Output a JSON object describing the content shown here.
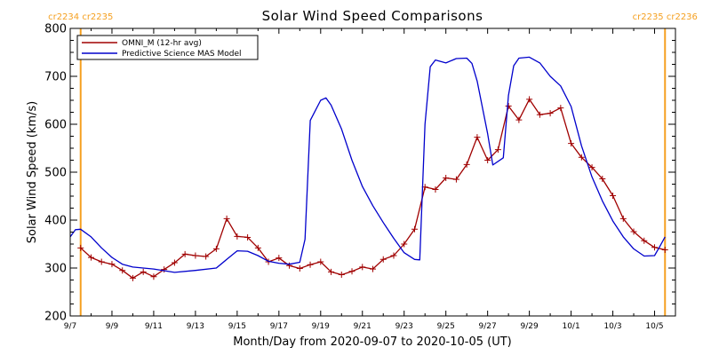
{
  "colors": {
    "omni": "#a00000",
    "model": "#0000cc",
    "carrington": "#f5a020",
    "axis": "#000000"
  },
  "chart_data": {
    "type": "line",
    "title": "Solar Wind Speed Comparisons",
    "xlabel": "Month/Day from 2020-09-07 to 2020-10-05 (UT)",
    "ylabel": "Solar Wind Speed (km/s)",
    "x_range": [
      "2020-09-07",
      "2020-10-06"
    ],
    "ylim": [
      200,
      800
    ],
    "x_ticks": [
      {
        "label": "9/7",
        "date": "2020-09-07"
      },
      {
        "label": "9/9",
        "date": "2020-09-09"
      },
      {
        "label": "9/11",
        "date": "2020-09-11"
      },
      {
        "label": "9/13",
        "date": "2020-09-13"
      },
      {
        "label": "9/15",
        "date": "2020-09-15"
      },
      {
        "label": "9/17",
        "date": "2020-09-17"
      },
      {
        "label": "9/19",
        "date": "2020-09-19"
      },
      {
        "label": "9/21",
        "date": "2020-09-21"
      },
      {
        "label": "9/23",
        "date": "2020-09-23"
      },
      {
        "label": "9/25",
        "date": "2020-09-25"
      },
      {
        "label": "9/27",
        "date": "2020-09-27"
      },
      {
        "label": "9/29",
        "date": "2020-09-29"
      },
      {
        "label": "10/1",
        "date": "2020-10-01"
      },
      {
        "label": "10/3",
        "date": "2020-10-03"
      },
      {
        "label": "10/5",
        "date": "2020-10-05"
      }
    ],
    "y_ticks": [
      200,
      300,
      400,
      500,
      600,
      700,
      800
    ],
    "legend_position": "top-left",
    "carrington_markers": [
      {
        "date": "2020-09-07 12:00",
        "left_label": "cr2234",
        "right_label": "cr2235"
      },
      {
        "date": "2020-10-05 12:00",
        "left_label": "cr2235",
        "right_label": "cr2236"
      }
    ],
    "series": [
      {
        "name": "OMNI_M (12-hr avg)",
        "color": "#a00000",
        "markers": true,
        "points": [
          [
            "2020-09-07 12:00",
            342
          ],
          [
            "2020-09-08 00:00",
            322
          ],
          [
            "2020-09-08 12:00",
            313
          ],
          [
            "2020-09-09 00:00",
            308
          ],
          [
            "2020-09-09 12:00",
            295
          ],
          [
            "2020-09-10 00:00",
            279
          ],
          [
            "2020-09-10 12:00",
            292
          ],
          [
            "2020-09-11 00:00",
            282
          ],
          [
            "2020-09-11 12:00",
            297
          ],
          [
            "2020-09-12 00:00",
            311
          ],
          [
            "2020-09-12 12:00",
            329
          ],
          [
            "2020-09-13 00:00",
            326
          ],
          [
            "2020-09-13 12:00",
            324
          ],
          [
            "2020-09-14 00:00",
            340
          ],
          [
            "2020-09-14 12:00",
            403
          ],
          [
            "2020-09-15 00:00",
            366
          ],
          [
            "2020-09-15 12:00",
            364
          ],
          [
            "2020-09-16 00:00",
            342
          ],
          [
            "2020-09-16 12:00",
            313
          ],
          [
            "2020-09-17 00:00",
            321
          ],
          [
            "2020-09-17 12:00",
            305
          ],
          [
            "2020-09-18 00:00",
            299
          ],
          [
            "2020-09-18 12:00",
            307
          ],
          [
            "2020-09-19 00:00",
            313
          ],
          [
            "2020-09-19 12:00",
            292
          ],
          [
            "2020-09-20 00:00",
            286
          ],
          [
            "2020-09-20 12:00",
            293
          ],
          [
            "2020-09-21 00:00",
            302
          ],
          [
            "2020-09-21 12:00",
            298
          ],
          [
            "2020-09-22 00:00",
            318
          ],
          [
            "2020-09-22 12:00",
            326
          ],
          [
            "2020-09-23 00:00",
            350
          ],
          [
            "2020-09-23 12:00",
            381
          ],
          [
            "2020-09-24 00:00",
            469
          ],
          [
            "2020-09-24 12:00",
            464
          ],
          [
            "2020-09-25 00:00",
            488
          ],
          [
            "2020-09-25 12:00",
            485
          ],
          [
            "2020-09-26 00:00",
            516
          ],
          [
            "2020-09-26 12:00",
            573
          ],
          [
            "2020-09-27 00:00",
            525
          ],
          [
            "2020-09-27 12:00",
            547
          ],
          [
            "2020-09-28 00:00",
            638
          ],
          [
            "2020-09-28 12:00",
            609
          ],
          [
            "2020-09-29 00:00",
            652
          ],
          [
            "2020-09-29 12:00",
            620
          ],
          [
            "2020-09-30 00:00",
            623
          ],
          [
            "2020-09-30 12:00",
            634
          ],
          [
            "2020-10-01 00:00",
            560
          ],
          [
            "2020-10-01 12:00",
            531
          ],
          [
            "2020-10-02 00:00",
            510
          ],
          [
            "2020-10-02 12:00",
            486
          ],
          [
            "2020-10-03 00:00",
            451
          ],
          [
            "2020-10-03 12:00",
            403
          ],
          [
            "2020-10-04 00:00",
            376
          ],
          [
            "2020-10-04 12:00",
            357
          ],
          [
            "2020-10-05 00:00",
            343
          ],
          [
            "2020-10-05 12:00",
            338
          ]
        ]
      },
      {
        "name": "Predictive Science MAS Model",
        "color": "#0000cc",
        "markers": false,
        "points": [
          [
            "2020-09-07 00:00",
            365
          ],
          [
            "2020-09-07 06:00",
            380
          ],
          [
            "2020-09-07 12:00",
            381
          ],
          [
            "2020-09-08 00:00",
            365
          ],
          [
            "2020-09-08 12:00",
            342
          ],
          [
            "2020-09-09 00:00",
            322
          ],
          [
            "2020-09-09 12:00",
            308
          ],
          [
            "2020-09-10 00:00",
            302
          ],
          [
            "2020-09-11 00:00",
            298
          ],
          [
            "2020-09-12 00:00",
            291
          ],
          [
            "2020-09-13 00:00",
            295
          ],
          [
            "2020-09-14 00:00",
            300
          ],
          [
            "2020-09-14 12:00",
            318
          ],
          [
            "2020-09-15 00:00",
            336
          ],
          [
            "2020-09-15 12:00",
            335
          ],
          [
            "2020-09-16 00:00",
            326
          ],
          [
            "2020-09-16 12:00",
            314
          ],
          [
            "2020-09-17 00:00",
            310
          ],
          [
            "2020-09-17 12:00",
            308
          ],
          [
            "2020-09-18 00:00",
            312
          ],
          [
            "2020-09-18 06:00",
            360
          ],
          [
            "2020-09-18 12:00",
            608
          ],
          [
            "2020-09-19 00:00",
            650
          ],
          [
            "2020-09-19 06:00",
            655
          ],
          [
            "2020-09-19 12:00",
            640
          ],
          [
            "2020-09-20 00:00",
            590
          ],
          [
            "2020-09-20 12:00",
            525
          ],
          [
            "2020-09-21 00:00",
            470
          ],
          [
            "2020-09-21 12:00",
            430
          ],
          [
            "2020-09-22 00:00",
            395
          ],
          [
            "2020-09-22 12:00",
            362
          ],
          [
            "2020-09-23 00:00",
            332
          ],
          [
            "2020-09-23 12:00",
            318
          ],
          [
            "2020-09-23 18:00",
            317
          ],
          [
            "2020-09-24 00:00",
            600
          ],
          [
            "2020-09-24 06:00",
            720
          ],
          [
            "2020-09-24 12:00",
            734
          ],
          [
            "2020-09-25 00:00",
            728
          ],
          [
            "2020-09-25 12:00",
            737
          ],
          [
            "2020-09-26 00:00",
            738
          ],
          [
            "2020-09-26 06:00",
            727
          ],
          [
            "2020-09-26 12:00",
            690
          ],
          [
            "2020-09-27 00:00",
            580
          ],
          [
            "2020-09-27 06:00",
            515
          ],
          [
            "2020-09-27 18:00",
            530
          ],
          [
            "2020-09-28 00:00",
            660
          ],
          [
            "2020-09-28 06:00",
            722
          ],
          [
            "2020-09-28 12:00",
            738
          ],
          [
            "2020-09-29 00:00",
            740
          ],
          [
            "2020-09-29 12:00",
            728
          ],
          [
            "2020-09-30 00:00",
            700
          ],
          [
            "2020-09-30 12:00",
            680
          ],
          [
            "2020-10-01 00:00",
            637
          ],
          [
            "2020-10-01 12:00",
            555
          ],
          [
            "2020-10-02 00:00",
            490
          ],
          [
            "2020-10-02 12:00",
            440
          ],
          [
            "2020-10-03 00:00",
            398
          ],
          [
            "2020-10-03 12:00",
            365
          ],
          [
            "2020-10-04 00:00",
            340
          ],
          [
            "2020-10-04 12:00",
            325
          ],
          [
            "2020-10-05 00:00",
            326
          ],
          [
            "2020-10-05 06:00",
            345
          ],
          [
            "2020-10-05 12:00",
            365
          ]
        ]
      }
    ]
  }
}
